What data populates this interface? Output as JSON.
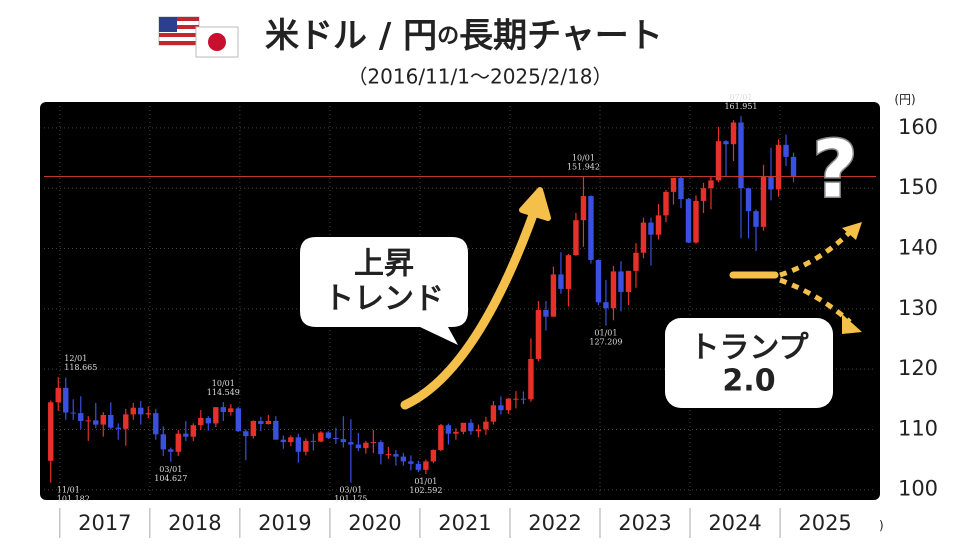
{
  "chart_data": {
    "type": "candlestick",
    "title": "米ドル / 円",
    "title_particle": "の",
    "title_tail": "長期チャート",
    "subtitle": "（2016/11/1〜2025/2/18）",
    "y_unit": "(円)",
    "x_unit": "(年)",
    "up_color": "#e8302a",
    "down_color": "#3a50e0",
    "ylim": [
      98.3,
      164.3
    ],
    "yticks": [
      100,
      110,
      120,
      130,
      140,
      150,
      160
    ],
    "xlim": [
      2016.78,
      2026.11
    ],
    "xticks": [
      2017,
      2018,
      2019,
      2020,
      2021,
      2022,
      2023,
      2024,
      2025
    ],
    "grid": true,
    "open": [
      104.8,
      114.5,
      116.9,
      112.8,
      112.7,
      111.4,
      111.5,
      110.8,
      112.4,
      110.3,
      110.1,
      112.5,
      113.6,
      112.5,
      112.7,
      109.2,
      106.7,
      106.3,
      109.3,
      108.8,
      110.7,
      111.9,
      111.0,
      113.7,
      112.9,
      113.5,
      109.7,
      108.9,
      111.4,
      110.9,
      111.4,
      108.3,
      107.9,
      108.7,
      106.3,
      108.1,
      108.0,
      109.5,
      108.6,
      108.4,
      107.9,
      107.5,
      106.9,
      107.8,
      107.9,
      105.9,
      105.9,
      105.5,
      104.7,
      104.3,
      103.3,
      104.7,
      106.6,
      110.7,
      109.3,
      109.6,
      111.1,
      109.7,
      110.0,
      111.3,
      114.0,
      113.2,
      115.1,
      115.1,
      115.0,
      121.7,
      129.8,
      128.7,
      135.7,
      133.3,
      138.9,
      144.7,
      148.7,
      138.1,
      131.1,
      130.1,
      136.2,
      132.8,
      136.3,
      139.3,
      144.3,
      142.3,
      145.5,
      149.4,
      151.7,
      148.2,
      141.0,
      147.9,
      150.0,
      151.3,
      157.8,
      157.3,
      160.9,
      150.0,
      146.2,
      143.6,
      152.0,
      149.8,
      157.2,
      155.2
    ],
    "high": [
      114.8,
      118.665,
      118.6,
      115.0,
      115.5,
      112.2,
      114.4,
      112.9,
      114.5,
      111.0,
      113.4,
      114.4,
      114.7,
      113.8,
      113.4,
      110.5,
      107.0,
      109.9,
      111.4,
      111.0,
      113.2,
      112.2,
      113.7,
      114.549,
      114.2,
      113.7,
      110.0,
      111.5,
      112.1,
      112.4,
      112.2,
      109.0,
      109.0,
      109.3,
      108.5,
      109.3,
      109.7,
      109.7,
      110.3,
      112.2,
      111.7,
      109.4,
      108.1,
      109.9,
      108.2,
      107.1,
      106.6,
      106.1,
      105.7,
      104.8,
      105.0,
      106.7,
      110.9,
      110.97,
      110.2,
      111.1,
      111.7,
      110.8,
      112.1,
      114.7,
      115.5,
      115.2,
      116.35,
      116.3,
      125.1,
      131.3,
      131.3,
      137.0,
      139.4,
      139.1,
      145.9,
      151.942,
      148.8,
      138.2,
      134.8,
      137.1,
      137.9,
      136.3,
      140.9,
      145.1,
      145.1,
      147.4,
      149.7,
      151.7,
      151.9,
      148.4,
      148.8,
      150.9,
      151.97,
      160.2,
      157.99,
      161.3,
      161.951,
      150.0,
      146.5,
      153.9,
      156.7,
      158.1,
      158.9,
      155.9
    ],
    "low": [
      101.182,
      113.1,
      111.6,
      111.6,
      110.1,
      108.1,
      110.2,
      108.8,
      110.0,
      108.3,
      107.3,
      111.6,
      110.8,
      111.9,
      108.3,
      105.6,
      104.627,
      105.6,
      108.1,
      108.1,
      109.9,
      109.8,
      110.4,
      111.4,
      112.3,
      109.6,
      104.9,
      108.5,
      109.7,
      110.8,
      108.3,
      106.8,
      107.2,
      104.5,
      105.7,
      106.5,
      107.9,
      108.4,
      107.6,
      107.0,
      101.175,
      106.4,
      105.99,
      106.1,
      104.2,
      105.1,
      104.0,
      104.0,
      103.2,
      102.9,
      102.592,
      104.4,
      106.4,
      107.5,
      108.3,
      109.2,
      109.1,
      108.7,
      109.1,
      110.8,
      112.5,
      112.6,
      113.5,
      114.2,
      114.6,
      121.3,
      126.4,
      128.7,
      132.5,
      130.4,
      138.8,
      140.3,
      137.5,
      130.6,
      127.209,
      128.1,
      129.6,
      130.6,
      133.5,
      138.4,
      137.2,
      141.5,
      144.4,
      147.3,
      146.7,
      140.9,
      140.8,
      145.9,
      146.5,
      151.0,
      151.9,
      154.5,
      141.7,
      141.7,
      139.58,
      142.97,
      148.0,
      148.6,
      153.7,
      151.0
    ],
    "close": [
      114.5,
      116.9,
      112.8,
      112.7,
      111.4,
      111.5,
      110.8,
      112.4,
      110.3,
      110.1,
      112.5,
      113.6,
      112.5,
      112.7,
      109.2,
      106.7,
      106.3,
      109.3,
      108.8,
      110.7,
      111.9,
      111.0,
      113.7,
      112.9,
      113.5,
      109.7,
      108.9,
      111.4,
      110.9,
      111.4,
      108.3,
      107.9,
      108.7,
      106.3,
      108.1,
      108.0,
      109.5,
      108.6,
      108.4,
      107.9,
      107.5,
      106.9,
      107.8,
      107.9,
      105.9,
      105.9,
      105.5,
      104.7,
      104.3,
      103.3,
      104.7,
      106.6,
      110.7,
      109.3,
      109.6,
      111.1,
      109.7,
      110.0,
      111.3,
      114.0,
      113.2,
      115.1,
      115.1,
      115.0,
      121.7,
      129.8,
      128.7,
      135.7,
      133.3,
      138.9,
      144.7,
      148.7,
      138.1,
      131.1,
      130.1,
      136.2,
      132.8,
      136.3,
      139.3,
      144.3,
      142.3,
      145.5,
      149.4,
      151.7,
      148.2,
      141.0,
      147.9,
      150.0,
      151.3,
      157.8,
      157.3,
      160.9,
      150.0,
      146.2,
      143.6,
      152.0,
      149.8,
      157.2,
      155.2,
      151.9
    ],
    "annotations": [
      {
        "date": "11/01",
        "value": 101.182
      },
      {
        "date": "12/01",
        "value": 118.665
      },
      {
        "date": "03/01",
        "value": 104.627
      },
      {
        "date": "10/01",
        "value": 114.549
      },
      {
        "date": "03/01",
        "value": 101.175
      },
      {
        "date": "01/01",
        "value": 102.592
      },
      {
        "date": "10/01",
        "value": 151.942
      },
      {
        "date": "01/01",
        "value": 127.209
      },
      {
        "date": "07/01",
        "value": 161.951
      }
    ],
    "callouts": [
      {
        "lines": [
          "上昇",
          "トレンド"
        ]
      },
      {
        "lines": [
          "トランプ",
          "2.0"
        ]
      }
    ],
    "question": "?"
  }
}
